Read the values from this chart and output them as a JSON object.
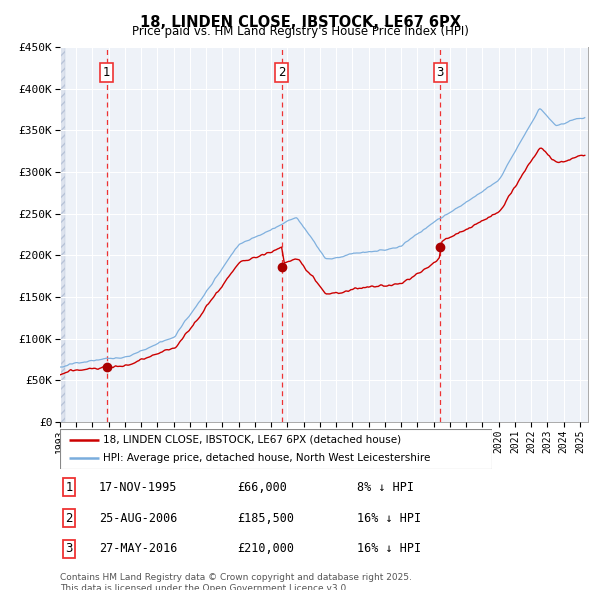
{
  "title": "18, LINDEN CLOSE, IBSTOCK, LE67 6PX",
  "subtitle": "Price paid vs. HM Land Registry's House Price Index (HPI)",
  "legend_line1": "18, LINDEN CLOSE, IBSTOCK, LE67 6PX (detached house)",
  "legend_line2": "HPI: Average price, detached house, North West Leicestershire",
  "footnote": "Contains HM Land Registry data © Crown copyright and database right 2025.\nThis data is licensed under the Open Government Licence v3.0.",
  "purchases": [
    {
      "num": 1,
      "date": "17-NOV-1995",
      "price": 66000,
      "pct": "8% ↓ HPI",
      "date_x": 1995.88
    },
    {
      "num": 2,
      "date": "25-AUG-2006",
      "price": 185500,
      "pct": "16% ↓ HPI",
      "date_x": 2006.65
    },
    {
      "num": 3,
      "date": "27-MAY-2016",
      "price": 210000,
      "pct": "16% ↓ HPI",
      "date_x": 2016.41
    }
  ],
  "ylim": [
    0,
    450000
  ],
  "yticks": [
    0,
    50000,
    100000,
    150000,
    200000,
    250000,
    300000,
    350000,
    400000,
    450000
  ],
  "ytick_labels": [
    "£0",
    "£50K",
    "£100K",
    "£150K",
    "£200K",
    "£250K",
    "£300K",
    "£350K",
    "£400K",
    "£450K"
  ],
  "xlim": [
    1993.0,
    2025.5
  ],
  "price_paid_color": "#cc0000",
  "hpi_color": "#7aaddd",
  "vline_color": "#ee3333",
  "marker_color": "#aa0000",
  "background_color": "#eef2f8",
  "grid_color": "#ffffff",
  "hatch_color": "#dde3ee"
}
